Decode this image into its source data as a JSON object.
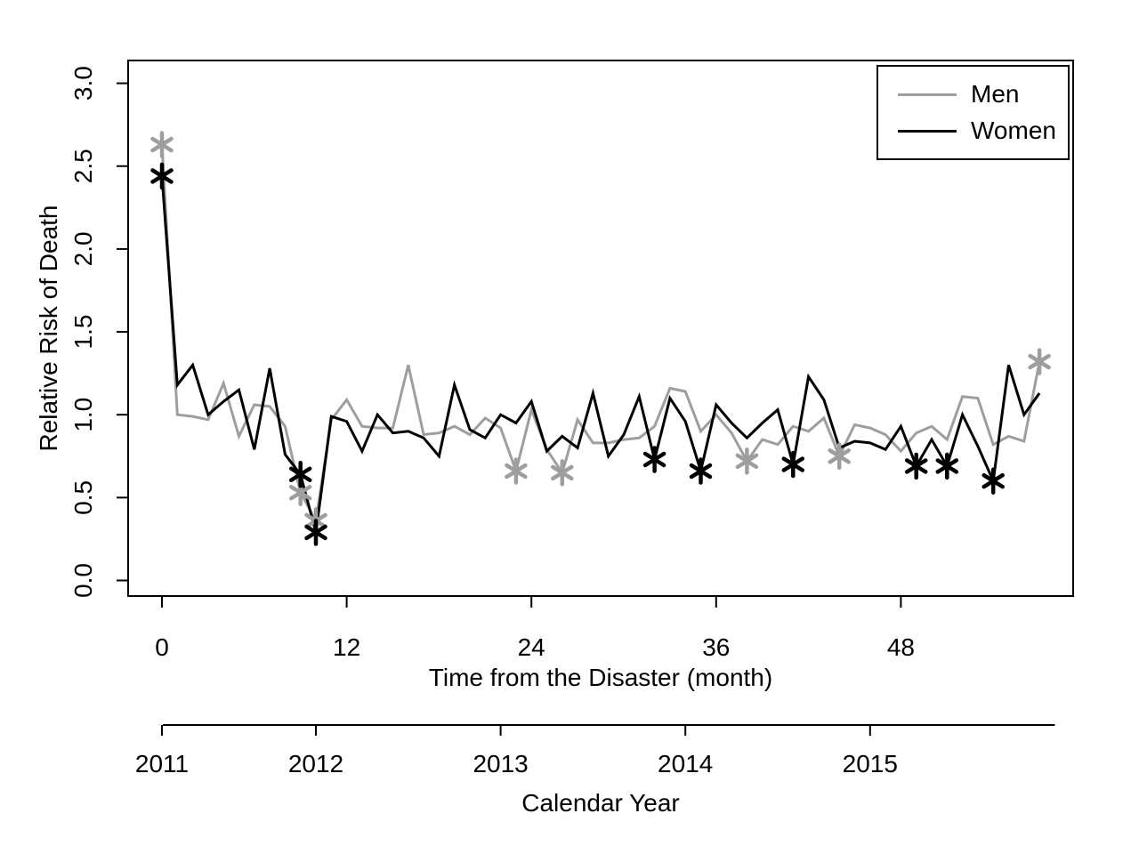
{
  "chart_data": {
    "type": "line",
    "title": "",
    "xlabel": "Time from the Disaster (month)",
    "ylabel": "Relative Risk of Death",
    "calendar_label": "Calendar Year",
    "x_ticks": [
      0,
      12,
      24,
      36,
      48
    ],
    "y_ticks": [
      "0.0",
      "0.5",
      "1.0",
      "1.5",
      "2.0",
      "2.5",
      "3.0"
    ],
    "xlim": [
      0,
      58
    ],
    "ylim": [
      0,
      3
    ],
    "grid": false,
    "legend_position": "top-right",
    "marker": "asterisk",
    "x_months": "0 through 57, one point per month",
    "series": [
      {
        "name": "Men",
        "color": "#9e9e9e",
        "values": [
          2.63,
          1.0,
          0.99,
          0.97,
          1.19,
          0.87,
          1.06,
          1.05,
          0.93,
          0.53,
          0.36,
          0.97,
          1.09,
          0.93,
          0.92,
          0.92,
          1.3,
          0.88,
          0.89,
          0.93,
          0.88,
          0.98,
          0.92,
          0.66,
          1.03,
          0.79,
          0.65,
          0.97,
          0.83,
          0.83,
          0.85,
          0.86,
          0.93,
          1.16,
          1.14,
          0.9,
          1.0,
          0.89,
          0.72,
          0.85,
          0.82,
          0.93,
          0.9,
          0.98,
          0.75,
          0.94,
          0.92,
          0.88,
          0.78,
          0.89,
          0.93,
          0.85,
          1.11,
          1.1,
          0.82,
          0.87,
          0.84,
          1.32
        ],
        "marked_months": [
          0,
          9,
          10,
          23,
          26,
          38,
          44,
          57
        ]
      },
      {
        "name": "Women",
        "color": "#000000",
        "values": [
          2.44,
          1.18,
          1.3,
          1.0,
          1.08,
          1.15,
          0.79,
          1.28,
          0.76,
          0.64,
          0.29,
          0.99,
          0.96,
          0.78,
          1.0,
          0.89,
          0.9,
          0.86,
          0.75,
          1.18,
          0.91,
          0.86,
          1.0,
          0.95,
          1.08,
          0.78,
          0.87,
          0.8,
          1.13,
          0.75,
          0.88,
          1.11,
          0.73,
          1.1,
          0.96,
          0.66,
          1.06,
          0.95,
          0.86,
          0.95,
          1.03,
          0.7,
          1.23,
          1.09,
          0.8,
          0.84,
          0.83,
          0.79,
          0.93,
          0.69,
          0.85,
          0.69,
          1.0,
          0.81,
          0.6,
          1.3,
          1.0,
          1.13
        ],
        "marked_months": [
          0,
          9,
          10,
          32,
          35,
          41,
          49,
          51,
          54
        ]
      }
    ],
    "calendar_axis": {
      "years": [
        {
          "label": "2011",
          "month": 0
        },
        {
          "label": "2012",
          "month": 10
        },
        {
          "label": "2013",
          "month": 22
        },
        {
          "label": "2014",
          "month": 34
        },
        {
          "label": "2015",
          "month": 46
        }
      ],
      "end_month": 58
    }
  }
}
